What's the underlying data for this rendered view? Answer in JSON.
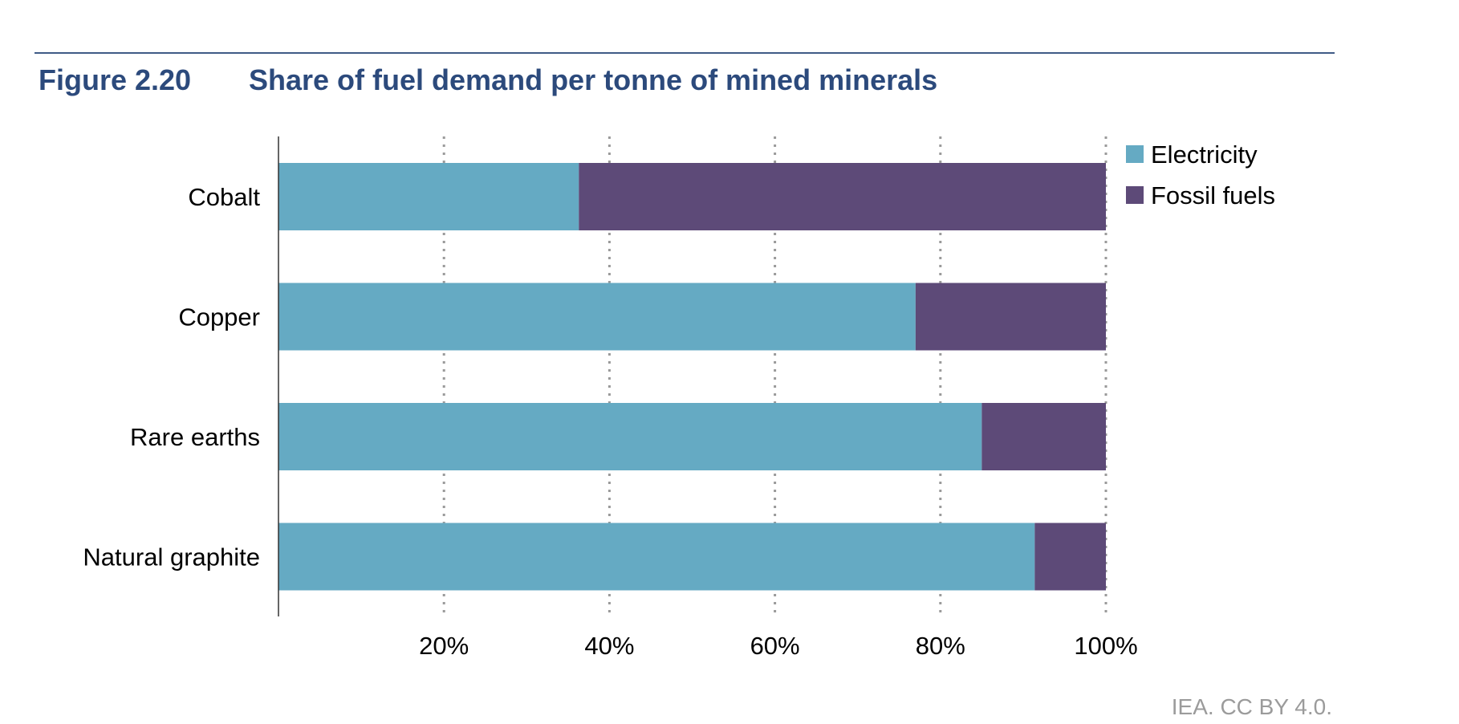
{
  "figure": {
    "number": "Figure 2.20",
    "title": "Share of fuel demand per tonne of mined minerals"
  },
  "source": "IEA. CC BY 4.0.",
  "colors": {
    "electricity": "#65aac3",
    "fossil_fuels": "#5d4a78",
    "gridline": "#9a9a9a",
    "axis": "#333333"
  },
  "chart_data": {
    "type": "bar",
    "orientation": "horizontal",
    "stacked": true,
    "categories": [
      "Cobalt",
      "Copper",
      "Rare earths",
      "Natural graphite"
    ],
    "series": [
      {
        "name": "Electricity",
        "values": [
          36.3,
          77.0,
          85.0,
          91.4
        ]
      },
      {
        "name": "Fossil fuels",
        "values": [
          63.7,
          23.0,
          15.0,
          8.6
        ]
      }
    ],
    "xlim": [
      0,
      100
    ],
    "xticks": [
      20,
      40,
      60,
      80,
      100
    ],
    "xtick_labels": [
      "20%",
      "40%",
      "60%",
      "80%",
      "100%"
    ],
    "grid": "vertical dotted",
    "legend_position": "top-right",
    "xlabel": "",
    "ylabel": ""
  }
}
